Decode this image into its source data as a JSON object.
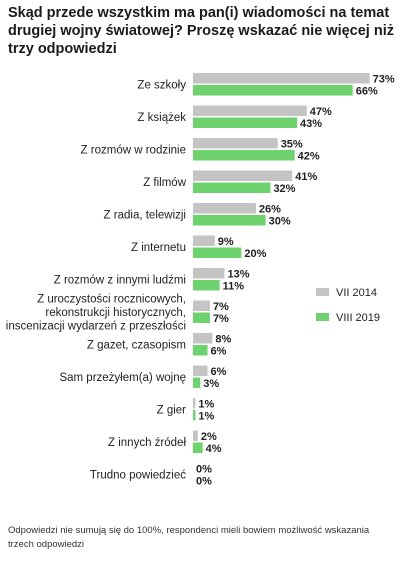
{
  "title": "Skąd przede wszystkim ma pan(i) wiadomości na temat drugiej wojny światowej? Proszę wskazać nie więcej niż trzy odpowiedzi",
  "note": "Odpowiedzi nie sumują się do 100%, respondenci mieli bowiem możliwość wskazania trzech odpowiedzi",
  "colors": {
    "VII 2014": "#c4c4c4",
    "VIII 2019": "#6ed36e"
  },
  "chart_data": {
    "type": "bar",
    "orientation": "horizontal",
    "title": "Skąd przede wszystkim ma pan(i) wiadomości na temat drugiej wojny światowej? Proszę wskazać nie więcej niż trzy odpowiedzi",
    "legend_position": "right",
    "grid": false,
    "xlim": [
      0,
      73
    ],
    "value_suffix": "%",
    "categories": [
      "Ze szkoły",
      "Z książek",
      "Z rozmów w rodzinie",
      "Z filmów",
      "Z radia, telewizji",
      "Z internetu",
      "Z rozmów z innymi ludźmi",
      "Z uroczystości rocznicowych,\nrekonstrukcji historycznych,\ninscenizacji wydarzeń z przeszłości",
      "Z gazet, czasopism",
      "Sam przeżyłem(a) wojnę",
      "Z gier",
      "Z innych źródeł",
      "Trudno powiedzieć"
    ],
    "series": [
      {
        "name": "VII 2014",
        "values": [
          73,
          47,
          35,
          41,
          26,
          9,
          13,
          7,
          8,
          6,
          1,
          2,
          0
        ]
      },
      {
        "name": "VIII 2019",
        "values": [
          66,
          43,
          42,
          32,
          30,
          20,
          11,
          7,
          6,
          3,
          1,
          4,
          0
        ]
      }
    ]
  }
}
